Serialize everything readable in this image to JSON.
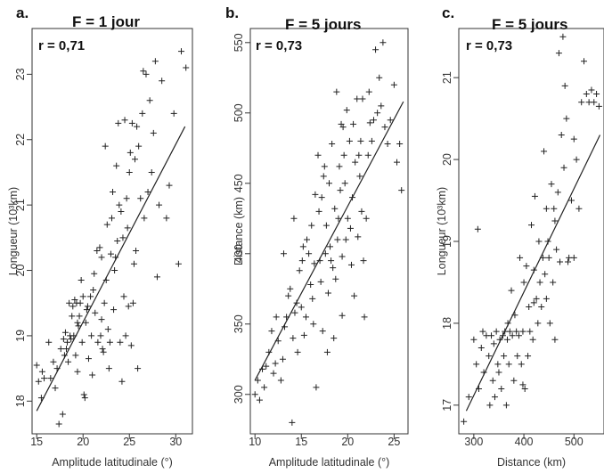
{
  "chart_data": [
    {
      "type": "scatter",
      "panel": "a.",
      "title": "F = 1 jour",
      "annotation": "r = 0,71",
      "xlabel": "Amplitude latitudinale (°)",
      "ylabel": "Longueur (10³km)",
      "xlim": [
        14.5,
        31.8
      ],
      "ylim": [
        17.5,
        23.7
      ],
      "xticks": [
        15,
        20,
        25,
        30
      ],
      "yticks": [
        18,
        19,
        20,
        21,
        22,
        23
      ],
      "fit_line": {
        "x": [
          15.0,
          31.0
        ],
        "y": [
          17.85,
          22.2
        ]
      },
      "points": [
        [
          15.0,
          18.55
        ],
        [
          15.2,
          18.3
        ],
        [
          15.5,
          18.05
        ],
        [
          15.6,
          18.45
        ],
        [
          15.8,
          18.35
        ],
        [
          16.3,
          18.9
        ],
        [
          16.5,
          18.35
        ],
        [
          16.8,
          18.6
        ],
        [
          17.0,
          18.2
        ],
        [
          17.2,
          18.5
        ],
        [
          17.4,
          17.65
        ],
        [
          17.6,
          18.8
        ],
        [
          17.8,
          17.8
        ],
        [
          17.9,
          18.95
        ],
        [
          18.0,
          18.7
        ],
        [
          18.1,
          19.05
        ],
        [
          18.3,
          18.9
        ],
        [
          18.4,
          18.6
        ],
        [
          18.5,
          19.5
        ],
        [
          18.6,
          19.0
        ],
        [
          18.7,
          18.95
        ],
        [
          18.8,
          19.3
        ],
        [
          18.9,
          19.45
        ],
        [
          19.0,
          19.0
        ],
        [
          19.1,
          19.55
        ],
        [
          19.2,
          18.7
        ],
        [
          19.3,
          19.5
        ],
        [
          19.4,
          18.45
        ],
        [
          19.5,
          19.15
        ],
        [
          19.6,
          19.3
        ],
        [
          19.7,
          19.5
        ],
        [
          19.8,
          19.85
        ],
        [
          19.9,
          18.9
        ],
        [
          20.0,
          19.6
        ],
        [
          20.1,
          18.1
        ],
        [
          20.2,
          18.05
        ],
        [
          20.3,
          19.2
        ],
        [
          20.4,
          19.4
        ],
        [
          20.5,
          19.45
        ],
        [
          20.6,
          18.65
        ],
        [
          20.8,
          19.6
        ],
        [
          21.0,
          18.4
        ],
        [
          21.1,
          19.7
        ],
        [
          21.3,
          19.35
        ],
        [
          21.5,
          20.3
        ],
        [
          21.6,
          18.9
        ],
        [
          21.8,
          20.35
        ],
        [
          21.9,
          19.0
        ],
        [
          22.0,
          19.25
        ],
        [
          22.1,
          18.8
        ],
        [
          22.2,
          18.75
        ],
        [
          22.3,
          19.5
        ],
        [
          22.4,
          21.9
        ],
        [
          22.5,
          19.85
        ],
        [
          22.6,
          20.7
        ],
        [
          22.7,
          19.1
        ],
        [
          22.8,
          18.5
        ],
        [
          22.9,
          18.9
        ],
        [
          23.0,
          20.25
        ],
        [
          23.1,
          20.8
        ],
        [
          23.2,
          21.2
        ],
        [
          23.3,
          19.4
        ],
        [
          23.4,
          20.0
        ],
        [
          23.5,
          20.2
        ],
        [
          23.6,
          21.6
        ],
        [
          23.7,
          20.45
        ],
        [
          23.8,
          22.25
        ],
        [
          23.9,
          21.0
        ],
        [
          24.0,
          18.9
        ],
        [
          24.1,
          20.9
        ],
        [
          24.2,
          18.3
        ],
        [
          24.3,
          20.5
        ],
        [
          24.4,
          19.6
        ],
        [
          24.5,
          22.3
        ],
        [
          24.6,
          19.0
        ],
        [
          24.7,
          21.1
        ],
        [
          24.8,
          20.65
        ],
        [
          24.9,
          19.45
        ],
        [
          25.0,
          21.5
        ],
        [
          25.1,
          21.8
        ],
        [
          25.2,
          18.85
        ],
        [
          25.3,
          22.25
        ],
        [
          25.4,
          19.5
        ],
        [
          25.5,
          20.1
        ],
        [
          25.6,
          21.7
        ],
        [
          25.7,
          20.3
        ],
        [
          25.8,
          22.2
        ],
        [
          25.9,
          18.5
        ],
        [
          26.0,
          21.9
        ],
        [
          26.2,
          21.1
        ],
        [
          26.4,
          22.4
        ],
        [
          26.6,
          20.8
        ],
        [
          26.8,
          23.0
        ],
        [
          27.0,
          21.2
        ],
        [
          27.2,
          22.6
        ],
        [
          27.4,
          21.5
        ],
        [
          27.6,
          22.1
        ],
        [
          27.8,
          23.2
        ],
        [
          28.0,
          19.9
        ],
        [
          28.2,
          21.0
        ],
        [
          28.5,
          22.9
        ],
        [
          29.0,
          20.8
        ],
        [
          29.3,
          21.3
        ],
        [
          29.8,
          22.4
        ],
        [
          30.3,
          20.1
        ],
        [
          30.6,
          23.35
        ],
        [
          31.1,
          23.1
        ],
        [
          26.5,
          23.05
        ],
        [
          22.0,
          20.2
        ],
        [
          21.2,
          19.95
        ],
        [
          19.4,
          19.2
        ],
        [
          18.2,
          18.8
        ],
        [
          20.9,
          19.0
        ]
      ]
    },
    {
      "type": "scatter",
      "panel": "b.",
      "title": "F = 5 jours",
      "annotation": "r = 0,73",
      "xlabel": "Amplitude latitudinale (°)",
      "ylabel": "Distance (km)",
      "xlim": [
        9.5,
        26.5
      ],
      "ylim": [
        272,
        560
      ],
      "xticks": [
        10,
        15,
        20,
        25
      ],
      "yticks": [
        300,
        350,
        400,
        450,
        500,
        550
      ],
      "fit_line": {
        "x": [
          10.0,
          26.0
        ],
        "y": [
          310,
          508
        ]
      },
      "points": [
        [
          10.0,
          300
        ],
        [
          10.3,
          310
        ],
        [
          10.5,
          296
        ],
        [
          10.8,
          318
        ],
        [
          11.0,
          305
        ],
        [
          11.2,
          320
        ],
        [
          11.5,
          330
        ],
        [
          11.8,
          345
        ],
        [
          12.0,
          315
        ],
        [
          12.2,
          322
        ],
        [
          12.5,
          338
        ],
        [
          12.8,
          310
        ],
        [
          13.0,
          325
        ],
        [
          13.2,
          348
        ],
        [
          13.4,
          355
        ],
        [
          13.6,
          370
        ],
        [
          13.8,
          375
        ],
        [
          14.0,
          280
        ],
        [
          14.1,
          340
        ],
        [
          14.2,
          425
        ],
        [
          14.3,
          358
        ],
        [
          14.5,
          365
        ],
        [
          14.6,
          330
        ],
        [
          14.8,
          388
        ],
        [
          15.0,
          362
        ],
        [
          15.1,
          395
        ],
        [
          15.2,
          405
        ],
        [
          15.3,
          342
        ],
        [
          15.5,
          355
        ],
        [
          15.6,
          410
        ],
        [
          15.8,
          400
        ],
        [
          16.0,
          378
        ],
        [
          16.1,
          420
        ],
        [
          16.2,
          368
        ],
        [
          16.3,
          350
        ],
        [
          16.5,
          442
        ],
        [
          16.6,
          305
        ],
        [
          16.8,
          470
        ],
        [
          16.9,
          430
        ],
        [
          17.0,
          395
        ],
        [
          17.1,
          380
        ],
        [
          17.2,
          440
        ],
        [
          17.3,
          345
        ],
        [
          17.4,
          455
        ],
        [
          17.5,
          462
        ],
        [
          17.6,
          400
        ],
        [
          17.7,
          420
        ],
        [
          17.8,
          330
        ],
        [
          17.9,
          372
        ],
        [
          18.0,
          450
        ],
        [
          18.1,
          405
        ],
        [
          18.2,
          395
        ],
        [
          18.3,
          478
        ],
        [
          18.4,
          390
        ],
        [
          18.5,
          340
        ],
        [
          18.6,
          432
        ],
        [
          18.7,
          382
        ],
        [
          18.8,
          515
        ],
        [
          18.9,
          410
        ],
        [
          19.0,
          425
        ],
        [
          19.1,
          462
        ],
        [
          19.2,
          445
        ],
        [
          19.3,
          492
        ],
        [
          19.4,
          398
        ],
        [
          19.5,
          490
        ],
        [
          19.6,
          470
        ],
        [
          19.7,
          450
        ],
        [
          19.8,
          410
        ],
        [
          19.9,
          502
        ],
        [
          20.0,
          425
        ],
        [
          20.2,
          480
        ],
        [
          20.3,
          418
        ],
        [
          20.4,
          392
        ],
        [
          20.5,
          440
        ],
        [
          20.6,
          492
        ],
        [
          20.7,
          370
        ],
        [
          20.8,
          465
        ],
        [
          21.0,
          510
        ],
        [
          21.2,
          470
        ],
        [
          21.3,
          455
        ],
        [
          21.4,
          480
        ],
        [
          21.5,
          430
        ],
        [
          21.6,
          510
        ],
        [
          21.7,
          395
        ],
        [
          21.8,
          355
        ],
        [
          22.0,
          425
        ],
        [
          22.2,
          470
        ],
        [
          22.3,
          515
        ],
        [
          22.4,
          493
        ],
        [
          22.6,
          480
        ],
        [
          22.8,
          495
        ],
        [
          23.0,
          545
        ],
        [
          23.2,
          500
        ],
        [
          23.4,
          525
        ],
        [
          23.6,
          505
        ],
        [
          23.8,
          550
        ],
        [
          24.0,
          490
        ],
        [
          24.3,
          478
        ],
        [
          24.6,
          495
        ],
        [
          25.0,
          520
        ],
        [
          25.3,
          465
        ],
        [
          25.6,
          478
        ],
        [
          25.8,
          445
        ],
        [
          13.1,
          400
        ],
        [
          16.4,
          393
        ],
        [
          19.4,
          356
        ],
        [
          21.1,
          412
        ],
        [
          12.3,
          355
        ]
      ]
    },
    {
      "type": "scatter",
      "panel": "c.",
      "title": "F = 5 jours",
      "annotation": "r = 0,73",
      "xlabel": "Distance (km)",
      "ylabel": "Longueur (10³km)",
      "xlim": [
        270,
        560
      ],
      "ylim": [
        16.65,
        21.6
      ],
      "xticks": [
        300,
        400,
        500
      ],
      "yticks": [
        17,
        18,
        19,
        20,
        21
      ],
      "fit_line": {
        "x": [
          285,
          552
        ],
        "y": [
          16.93,
          20.3
        ]
      },
      "points": [
        [
          280,
          16.8
        ],
        [
          290,
          17.1
        ],
        [
          300,
          17.8
        ],
        [
          305,
          17.5
        ],
        [
          310,
          17.2
        ],
        [
          315,
          17.7
        ],
        [
          318,
          17.9
        ],
        [
          320,
          17.4
        ],
        [
          325,
          17.85
        ],
        [
          330,
          17.6
        ],
        [
          332,
          17.0
        ],
        [
          335,
          17.85
        ],
        [
          338,
          17.3
        ],
        [
          340,
          17.75
        ],
        [
          342,
          17.1
        ],
        [
          345,
          17.9
        ],
        [
          348,
          17.5
        ],
        [
          350,
          17.4
        ],
        [
          352,
          17.8
        ],
        [
          355,
          17.2
        ],
        [
          358,
          17.85
        ],
        [
          360,
          17.6
        ],
        [
          362,
          17.9
        ],
        [
          365,
          17.0
        ],
        [
          367,
          17.8
        ],
        [
          370,
          17.5
        ],
        [
          372,
          17.9
        ],
        [
          375,
          18.4
        ],
        [
          377,
          17.85
        ],
        [
          380,
          17.3
        ],
        [
          382,
          18.1
        ],
        [
          385,
          17.9
        ],
        [
          387,
          17.6
        ],
        [
          390,
          17.85
        ],
        [
          392,
          18.8
        ],
        [
          395,
          17.5
        ],
        [
          398,
          17.9
        ],
        [
          400,
          18.5
        ],
        [
          402,
          17.2
        ],
        [
          405,
          18.7
        ],
        [
          408,
          17.6
        ],
        [
          410,
          18.2
        ],
        [
          412,
          17.9
        ],
        [
          415,
          19.2
        ],
        [
          418,
          17.8
        ],
        [
          420,
          18.65
        ],
        [
          422,
          19.55
        ],
        [
          425,
          18.3
        ],
        [
          428,
          18.0
        ],
        [
          430,
          19.0
        ],
        [
          432,
          18.5
        ],
        [
          435,
          18.2
        ],
        [
          438,
          18.8
        ],
        [
          440,
          20.1
        ],
        [
          442,
          18.6
        ],
        [
          445,
          18.3
        ],
        [
          448,
          19.0
        ],
        [
          450,
          18.8
        ],
        [
          452,
          18.0
        ],
        [
          455,
          19.7
        ],
        [
          458,
          18.5
        ],
        [
          460,
          19.4
        ],
        [
          462,
          17.8
        ],
        [
          465,
          18.9
        ],
        [
          468,
          19.6
        ],
        [
          470,
          21.3
        ],
        [
          472,
          18.75
        ],
        [
          475,
          20.3
        ],
        [
          478,
          21.5
        ],
        [
          480,
          19.9
        ],
        [
          482,
          20.9
        ],
        [
          485,
          20.5
        ],
        [
          488,
          18.75
        ],
        [
          490,
          18.8
        ],
        [
          495,
          19.5
        ],
        [
          500,
          18.8
        ],
        [
          505,
          20.0
        ],
        [
          510,
          19.4
        ],
        [
          515,
          20.7
        ],
        [
          520,
          21.2
        ],
        [
          525,
          20.8
        ],
        [
          530,
          20.7
        ],
        [
          535,
          20.85
        ],
        [
          540,
          20.7
        ],
        [
          545,
          20.8
        ],
        [
          550,
          20.65
        ],
        [
          308,
          19.15
        ],
        [
          368,
          18.0
        ],
        [
          398,
          17.25
        ],
        [
          420,
          18.25
        ],
        [
          445,
          19.4
        ],
        [
          462,
          19.25
        ],
        [
          500,
          20.25
        ]
      ]
    }
  ]
}
